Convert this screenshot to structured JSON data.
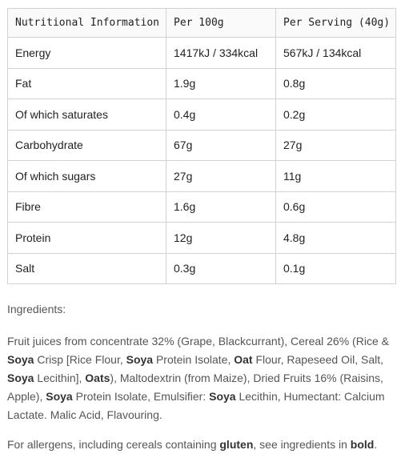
{
  "table": {
    "headers": [
      "Nutritional Information",
      "Per 100g",
      "Per Serving (40g)"
    ],
    "rows": [
      {
        "label": "Energy",
        "per100": "1417kJ / 334kcal",
        "serving": "567kJ / 134kcal"
      },
      {
        "label": "Fat",
        "per100": "1.9g",
        "serving": "0.8g"
      },
      {
        "label": "Of which saturates",
        "per100": "0.4g",
        "serving": "0.2g"
      },
      {
        "label": "Carbohydrate",
        "per100": "67g",
        "serving": "27g"
      },
      {
        "label": "Of which sugars",
        "per100": "27g",
        "serving": "11g"
      },
      {
        "label": "Fibre",
        "per100": "1.6g",
        "serving": "0.6g"
      },
      {
        "label": "Protein",
        "per100": "12g",
        "serving": "4.8g"
      },
      {
        "label": "Salt",
        "per100": "0.3g",
        "serving": "0.1g"
      }
    ]
  },
  "ingredients": {
    "heading": "Ingredients:",
    "segments": [
      {
        "text": "Fruit juices from concentrate 32% (Grape, Blackcurrant), Cereal 26% (Rice & ",
        "bold": false
      },
      {
        "text": "Soya",
        "bold": true
      },
      {
        "text": " Crisp [Rice Flour, ",
        "bold": false
      },
      {
        "text": "Soya",
        "bold": true
      },
      {
        "text": " Protein Isolate, ",
        "bold": false
      },
      {
        "text": "Oat",
        "bold": true
      },
      {
        "text": " Flour, Rapeseed Oil, Salt, ",
        "bold": false
      },
      {
        "text": "Soya",
        "bold": true
      },
      {
        "text": " Lecithin], ",
        "bold": false
      },
      {
        "text": "Oats",
        "bold": true
      },
      {
        "text": "), Maltodextrin (from Maize), Dried Fruits 16% (Raisins, Apple), ",
        "bold": false
      },
      {
        "text": "Soya",
        "bold": true
      },
      {
        "text": " Protein Isolate, Emulsifier: ",
        "bold": false
      },
      {
        "text": "Soya",
        "bold": true
      },
      {
        "text": " Lecithin, Humectant: Calcium Lactate. Malic Acid, Flavouring.",
        "bold": false
      }
    ]
  },
  "allergen_note": {
    "segments": [
      {
        "text": "For allergens, including cereals containing ",
        "bold": false
      },
      {
        "text": "gluten",
        "bold": true
      },
      {
        "text": ", see ingredients in ",
        "bold": false
      },
      {
        "text": "bold",
        "bold": true
      },
      {
        "text": ".",
        "bold": false
      }
    ]
  }
}
